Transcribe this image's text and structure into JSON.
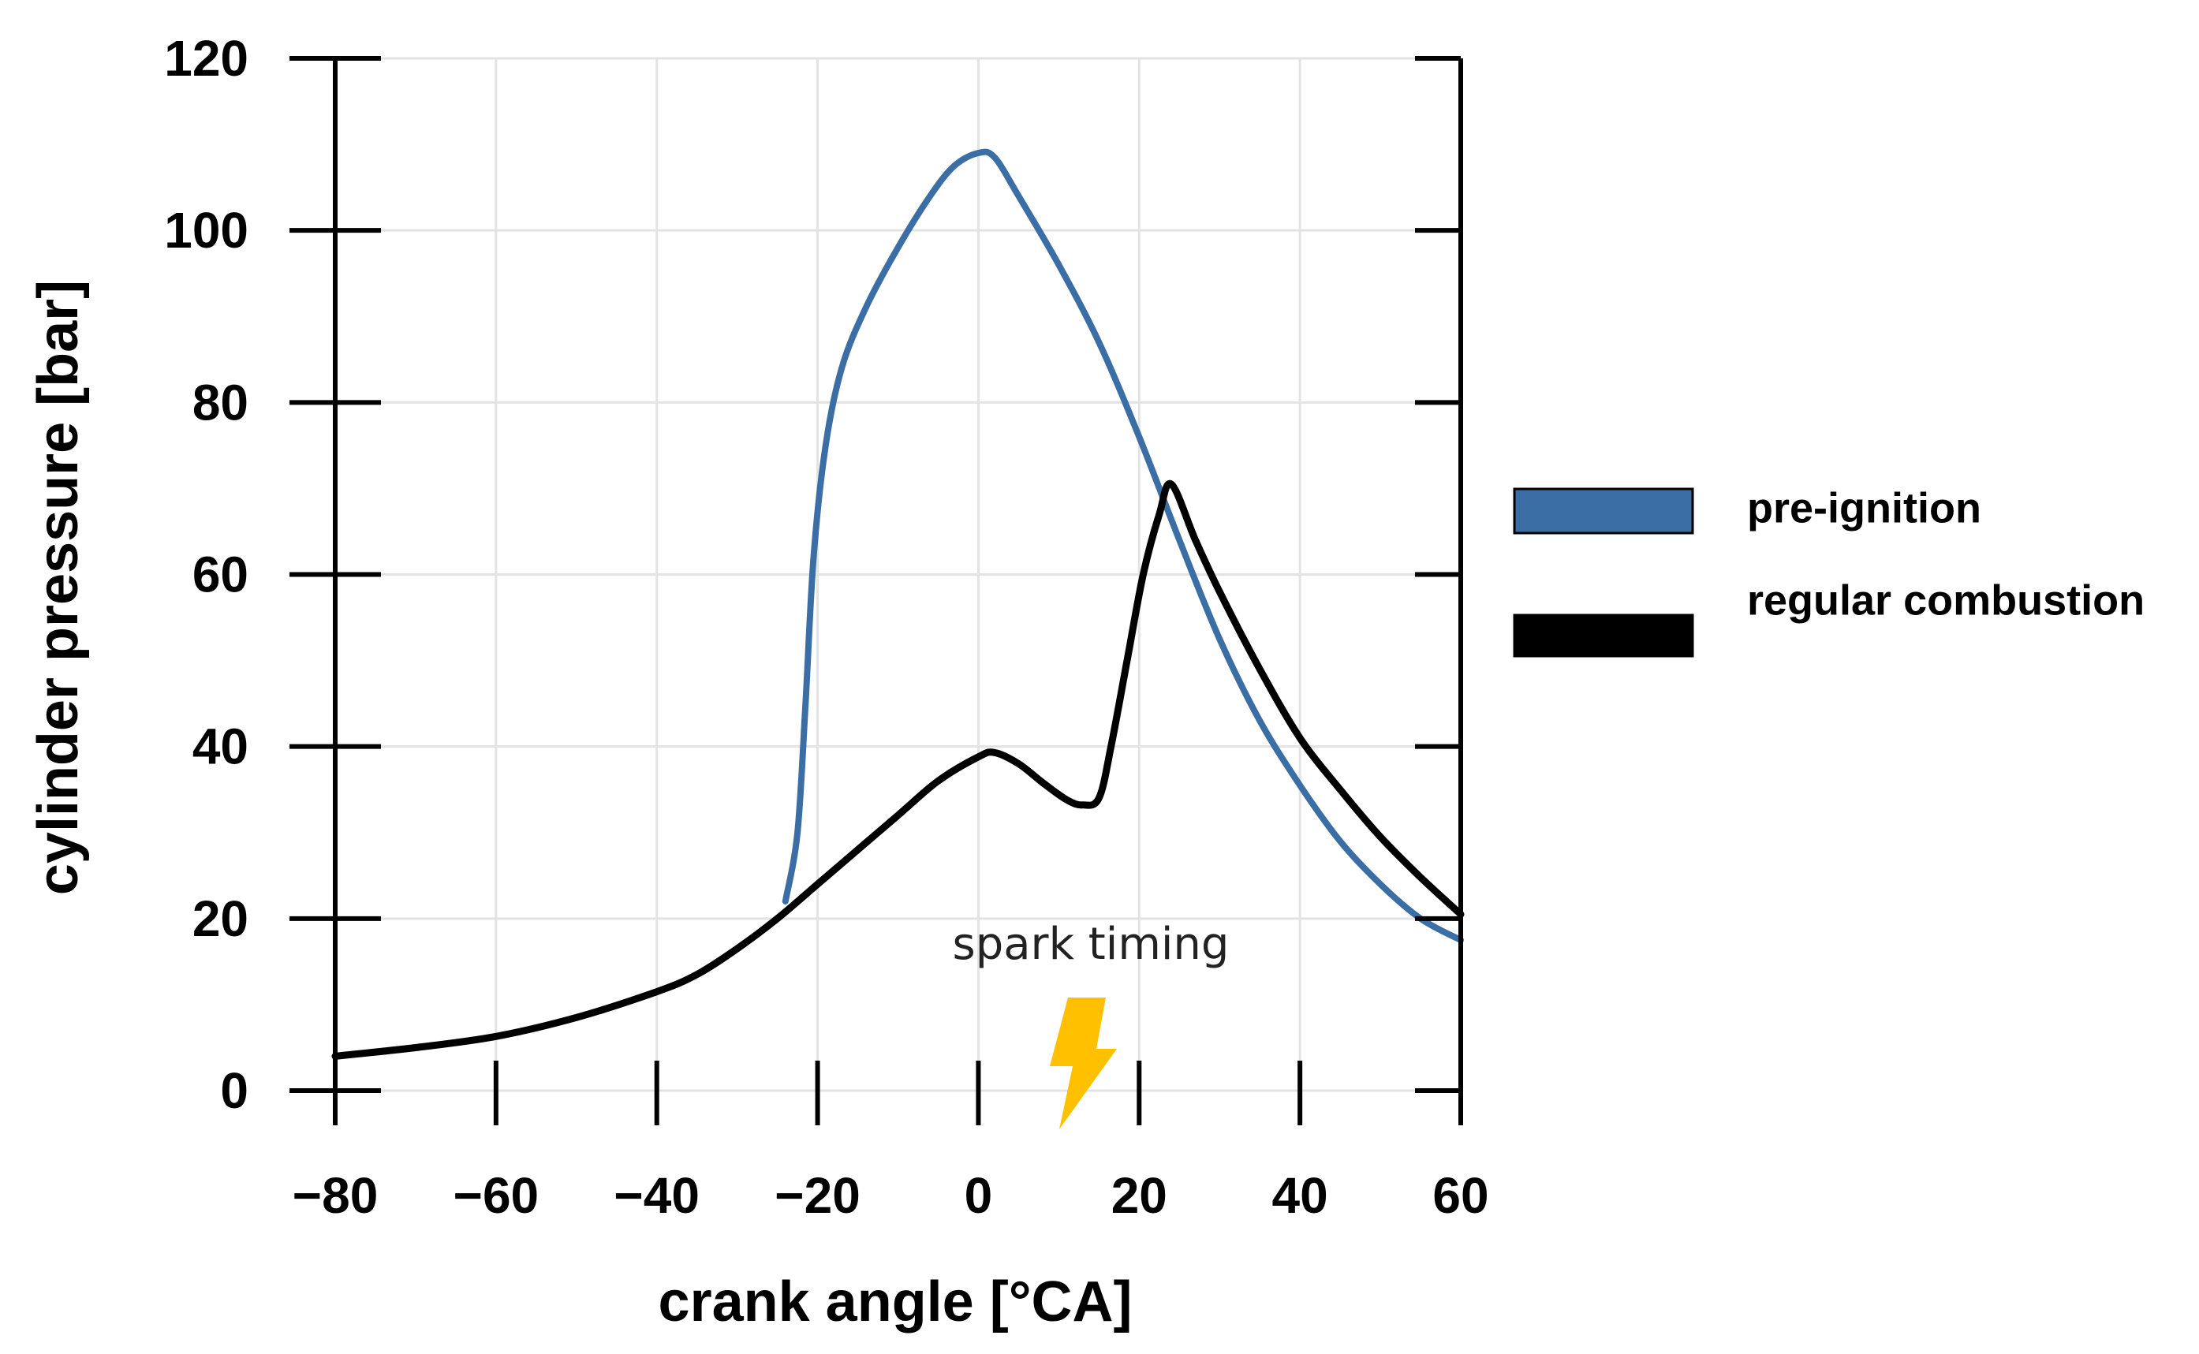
{
  "chart_data": {
    "type": "line",
    "title": "",
    "xlabel": "crank angle [°CA]",
    "ylabel": "cylinder pressure [bar]",
    "xlim": [
      -80,
      60
    ],
    "ylim": [
      0,
      120
    ],
    "grid": true,
    "x_ticks": [
      -80,
      -60,
      -40,
      -20,
      0,
      20,
      40,
      60
    ],
    "x_tick_labels": [
      "−80",
      "−60",
      "−40",
      "−20",
      "0",
      "20",
      "40",
      "60"
    ],
    "y_ticks": [
      0,
      20,
      40,
      60,
      80,
      100,
      120
    ],
    "y_tick_labels": [
      "0",
      "20",
      "40",
      "60",
      "80",
      "100",
      "120"
    ],
    "legend_position": "right",
    "series": [
      {
        "name": "pre-ignition",
        "color": "#3A6EA5",
        "points": [
          [
            -24,
            22
          ],
          [
            -22.5,
            30
          ],
          [
            -21.5,
            45
          ],
          [
            -20.5,
            62
          ],
          [
            -19,
            75
          ],
          [
            -17,
            84
          ],
          [
            -14,
            91
          ],
          [
            -10,
            98
          ],
          [
            -6,
            104
          ],
          [
            -3,
            107.5
          ],
          [
            0,
            109
          ],
          [
            2,
            108.5
          ],
          [
            5,
            104
          ],
          [
            10,
            96
          ],
          [
            15,
            87
          ],
          [
            20,
            76
          ],
          [
            25,
            64
          ],
          [
            30,
            52.5
          ],
          [
            35,
            43
          ],
          [
            40,
            35.5
          ],
          [
            45,
            29
          ],
          [
            50,
            24
          ],
          [
            55,
            20
          ],
          [
            60,
            17.5
          ]
        ]
      },
      {
        "name": "regular combustion",
        "color": "#000000",
        "points": [
          [
            -80,
            4
          ],
          [
            -70,
            5
          ],
          [
            -60,
            6.3
          ],
          [
            -50,
            8.5
          ],
          [
            -40,
            11.5
          ],
          [
            -35,
            13.5
          ],
          [
            -30,
            16.5
          ],
          [
            -25,
            20
          ],
          [
            -20,
            24
          ],
          [
            -15,
            28
          ],
          [
            -10,
            32
          ],
          [
            -5,
            36
          ],
          [
            0,
            38.8
          ],
          [
            2,
            39.3
          ],
          [
            5,
            38
          ],
          [
            8,
            35.8
          ],
          [
            11,
            33.8
          ],
          [
            13,
            33.2
          ],
          [
            15,
            34
          ],
          [
            16.5,
            40
          ],
          [
            18.5,
            50
          ],
          [
            20.5,
            60
          ],
          [
            22.5,
            67
          ],
          [
            24,
            70.5
          ],
          [
            27,
            64
          ],
          [
            30,
            58
          ],
          [
            35,
            49
          ],
          [
            40,
            41
          ],
          [
            45,
            35
          ],
          [
            50,
            29.5
          ],
          [
            55,
            24.8
          ],
          [
            60,
            20.5
          ]
        ]
      }
    ],
    "annotations": [
      {
        "text": "spark timing",
        "x": 16,
        "y": 13.2
      }
    ]
  },
  "icons": {
    "spark_icon": "lightning-bolt-icon",
    "spark_color": "#FFC000"
  }
}
